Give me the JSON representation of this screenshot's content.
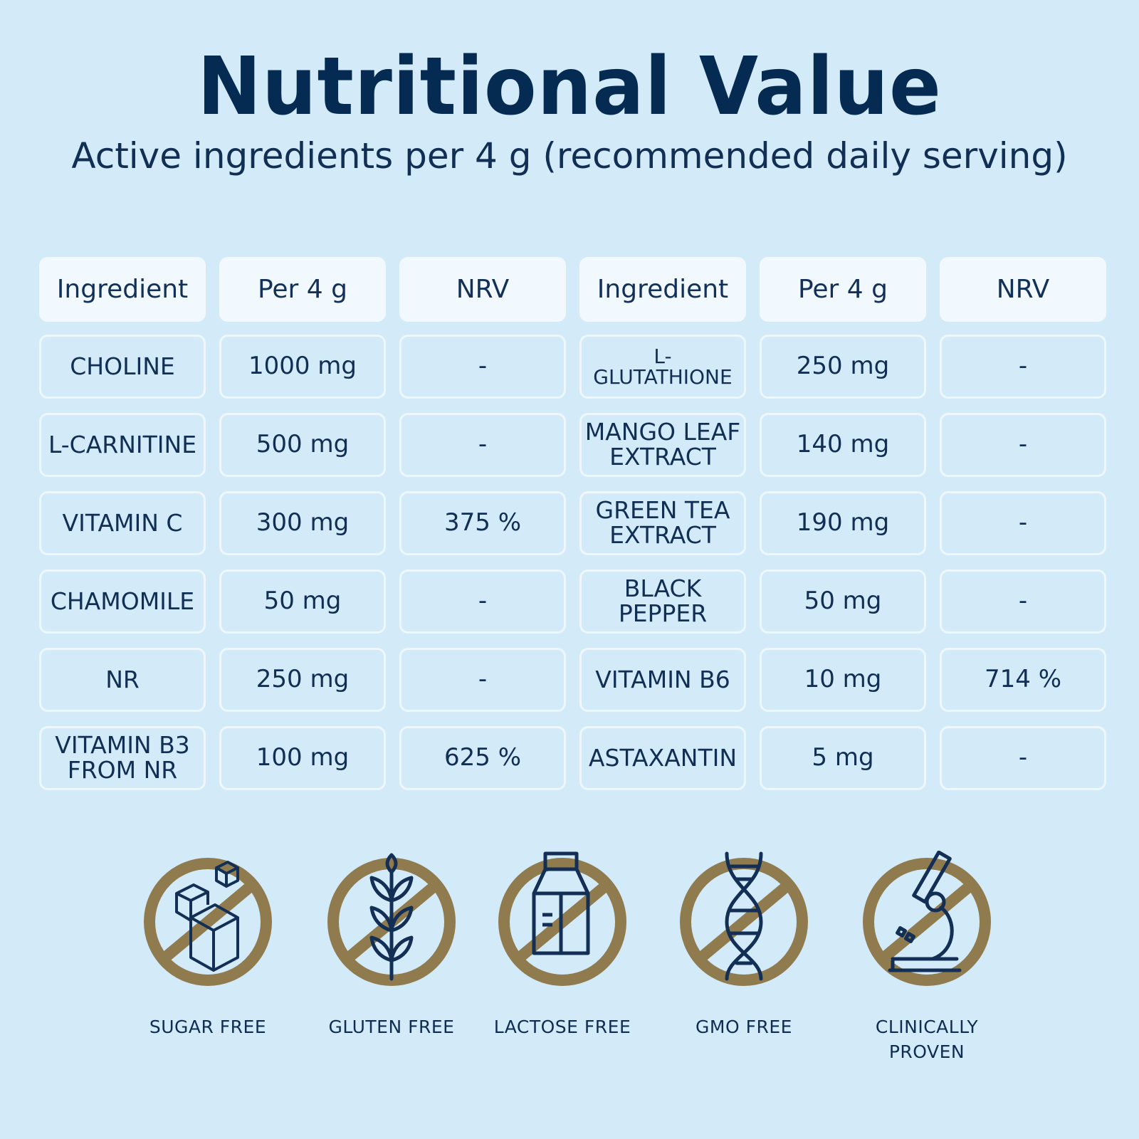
{
  "title": "Nutritional Value",
  "subtitle": "Active ingredients per 4 g (recommended daily serving)",
  "table": {
    "headers": [
      "Ingredient",
      "Per 4 g",
      "NRV",
      "Ingredient",
      "Per 4 g",
      "NRV"
    ],
    "rows": [
      [
        "CHOLINE",
        "1000 mg",
        "-",
        "L-GLUTATHIONE",
        "250 mg",
        "-"
      ],
      [
        "L-CARNITINE",
        "500 mg",
        "-",
        "MANGO LEAF EXTRACT",
        "140 mg",
        "-"
      ],
      [
        "VITAMIN C",
        "300 mg",
        "375 %",
        "GREEN TEA EXTRACT",
        "190 mg",
        "-"
      ],
      [
        "CHAMOMILE",
        "50 mg",
        "-",
        "BLACK PEPPER",
        "50 mg",
        "-"
      ],
      [
        "NR",
        "250 mg",
        "-",
        "VITAMIN B6",
        "10 mg",
        "714 %"
      ],
      [
        "VITAMIN B3 FROM NR",
        "100 mg",
        "625 %",
        "ASTAXANTIN",
        "5 mg",
        "-"
      ]
    ]
  },
  "badges": [
    {
      "label": "SUGAR FREE",
      "icon": "sugar-cubes-icon"
    },
    {
      "label": "GLUTEN FREE",
      "icon": "wheat-icon"
    },
    {
      "label": "LACTOSE FREE",
      "icon": "milk-carton-icon"
    },
    {
      "label": "GMO FREE",
      "icon": "dna-icon"
    },
    {
      "label": "CLINICALLY PROVEN",
      "icon": "microscope-icon"
    }
  ],
  "colors": {
    "background": "#d3ebf9",
    "title": "#062b52",
    "badge_ring": "#8f7b4e"
  }
}
